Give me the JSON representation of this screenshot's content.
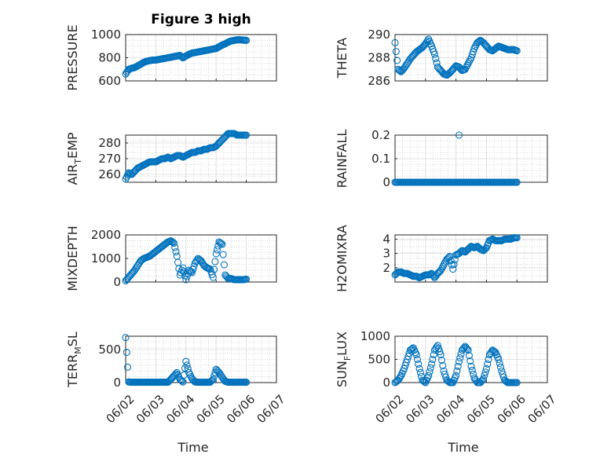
{
  "figure": {
    "title": "Figure 3 high",
    "accent_color": "#0072bd"
  },
  "chart_data": [
    {
      "type": "scatter",
      "ylabel": "PRESSURE",
      "ylim": [
        600,
        1000
      ],
      "yticks": [
        "600",
        "800",
        "1000"
      ],
      "ytick_values": [
        600,
        800,
        1000
      ],
      "xlim": [
        0,
        5
      ],
      "x": [
        0,
        0.1,
        0.2,
        0.3,
        0.4,
        0.5,
        0.6,
        0.7,
        0.8,
        0.9,
        1.0,
        1.1,
        1.2,
        1.3,
        1.4,
        1.5,
        1.6,
        1.7,
        1.8,
        1.9,
        2.0,
        2.1,
        2.2,
        2.3,
        2.4,
        2.5,
        2.6,
        2.7,
        2.8,
        2.9,
        3.0,
        3.1,
        3.2,
        3.3,
        3.4,
        3.5,
        3.6,
        3.7,
        3.8,
        3.9,
        4.0
      ],
      "y": [
        660,
        700,
        710,
        715,
        730,
        745,
        760,
        770,
        775,
        780,
        780,
        785,
        790,
        795,
        800,
        805,
        810,
        815,
        820,
        800,
        815,
        830,
        840,
        845,
        850,
        855,
        860,
        865,
        870,
        875,
        880,
        895,
        910,
        920,
        935,
        945,
        950,
        955,
        955,
        952,
        950
      ]
    },
    {
      "type": "scatter",
      "ylabel": "THETA",
      "ylim": [
        286,
        290
      ],
      "yticks": [
        "286",
        "288",
        "290"
      ],
      "ytick_values": [
        286,
        288,
        290
      ],
      "xlim": [
        0,
        5
      ],
      "x": [
        0,
        0.1,
        0.2,
        0.3,
        0.4,
        0.5,
        0.6,
        0.7,
        0.8,
        0.9,
        1.0,
        1.1,
        1.2,
        1.3,
        1.4,
        1.5,
        1.6,
        1.7,
        1.8,
        1.9,
        2.0,
        2.1,
        2.2,
        2.3,
        2.4,
        2.5,
        2.6,
        2.7,
        2.8,
        2.9,
        3.0,
        3.1,
        3.2,
        3.3,
        3.4,
        3.5,
        3.6,
        3.7,
        3.8,
        3.9,
        4.0
      ],
      "y": [
        289.3,
        287.0,
        286.8,
        287.1,
        287.5,
        287.9,
        288.2,
        288.5,
        288.7,
        288.9,
        289.2,
        289.6,
        289.0,
        288.3,
        287.2,
        286.9,
        286.6,
        286.5,
        286.7,
        287.0,
        287.3,
        287.2,
        286.9,
        287.0,
        287.5,
        288.0,
        288.8,
        289.3,
        289.5,
        289.3,
        289.0,
        288.7,
        288.6,
        288.8,
        289.0,
        288.9,
        288.8,
        288.7,
        288.7,
        288.7,
        288.6
      ]
    },
    {
      "type": "scatter",
      "ylabel": "AIR_TEMP",
      "ylim": [
        255,
        285
      ],
      "yticks": [
        "260",
        "270",
        "280"
      ],
      "ytick_values": [
        260,
        270,
        280
      ],
      "xlim": [
        0,
        5
      ],
      "x": [
        0,
        0.1,
        0.2,
        0.3,
        0.4,
        0.5,
        0.6,
        0.7,
        0.8,
        0.9,
        1.0,
        1.1,
        1.2,
        1.3,
        1.4,
        1.5,
        1.6,
        1.7,
        1.8,
        1.9,
        2.0,
        2.1,
        2.2,
        2.3,
        2.4,
        2.5,
        2.6,
        2.7,
        2.8,
        2.9,
        3.0,
        3.1,
        3.2,
        3.3,
        3.4,
        3.5,
        3.6,
        3.7,
        3.8,
        3.9,
        4.0
      ],
      "y": [
        257,
        261,
        260,
        262,
        264,
        265,
        266,
        267,
        268,
        268,
        268,
        269,
        270,
        270,
        271,
        270,
        271,
        272,
        272,
        271,
        272,
        273,
        274,
        274,
        275,
        275,
        276,
        276,
        277,
        277,
        278,
        280,
        282,
        284,
        286,
        286,
        286,
        285,
        285,
        285,
        285
      ]
    },
    {
      "type": "scatter",
      "ylabel": "RAINFALL",
      "ylim": [
        0,
        0.2
      ],
      "yticks": [
        "0",
        "0.1",
        "0.2"
      ],
      "ytick_values": [
        0,
        0.1,
        0.2
      ],
      "xlim": [
        0,
        5
      ],
      "x": [
        0,
        0.1,
        0.2,
        0.3,
        0.4,
        0.5,
        0.6,
        0.7,
        0.8,
        0.9,
        1.0,
        1.1,
        1.2,
        1.3,
        1.4,
        1.5,
        1.6,
        1.7,
        1.8,
        1.9,
        2.0,
        2.1,
        2.2,
        2.3,
        2.4,
        2.5,
        2.6,
        2.7,
        2.8,
        2.9,
        3.0,
        3.1,
        3.2,
        3.3,
        3.4,
        3.5,
        3.6,
        3.7,
        3.8,
        3.9,
        4.0
      ],
      "y": [
        0,
        0,
        0,
        0,
        0,
        0,
        0,
        0,
        0,
        0,
        0,
        0,
        0,
        0,
        0,
        0,
        0,
        0,
        0,
        0,
        0,
        0,
        0,
        0,
        0,
        0,
        0,
        0,
        0,
        0,
        0,
        0,
        0,
        0,
        0,
        0,
        0,
        0,
        0,
        0,
        0
      ],
      "extra_points": [
        [
          2.1,
          0.2
        ]
      ]
    },
    {
      "type": "scatter",
      "ylabel": "MIXDEPTH",
      "ylim": [
        0,
        2000
      ],
      "yticks": [
        "0",
        "1000",
        "2000"
      ],
      "ytick_values": [
        0,
        1000,
        2000
      ],
      "xlim": [
        0,
        5
      ],
      "x": [
        0,
        0.1,
        0.2,
        0.3,
        0.4,
        0.5,
        0.6,
        0.7,
        0.8,
        0.9,
        1.0,
        1.1,
        1.2,
        1.3,
        1.4,
        1.5,
        1.6,
        1.7,
        1.8,
        1.9,
        2.0,
        2.1,
        2.2,
        2.3,
        2.4,
        2.5,
        2.6,
        2.7,
        2.8,
        2.9,
        3.0,
        3.1,
        3.2,
        3.3,
        3.4,
        3.5,
        3.6,
        3.7,
        3.8,
        3.9,
        4.0
      ],
      "y": [
        50,
        200,
        350,
        500,
        700,
        900,
        1000,
        1050,
        1100,
        1200,
        1300,
        1400,
        1500,
        1600,
        1700,
        1750,
        1650,
        1100,
        300,
        600,
        100,
        500,
        400,
        800,
        1000,
        900,
        700,
        600,
        550,
        200,
        1200,
        1700,
        1600,
        300,
        150,
        150,
        100,
        100,
        100,
        100,
        120
      ]
    },
    {
      "type": "scatter",
      "ylabel": "H2OMIXRA",
      "ylim": [
        1,
        4.3
      ],
      "yticks": [
        "2",
        "3",
        "4"
      ],
      "ytick_values": [
        2,
        3,
        4
      ],
      "xlim": [
        0,
        5
      ],
      "x": [
        0,
        0.1,
        0.2,
        0.3,
        0.4,
        0.5,
        0.6,
        0.7,
        0.8,
        0.9,
        1.0,
        1.1,
        1.2,
        1.3,
        1.4,
        1.5,
        1.6,
        1.7,
        1.8,
        1.9,
        2.0,
        2.1,
        2.2,
        2.3,
        2.4,
        2.5,
        2.6,
        2.7,
        2.8,
        2.9,
        3.0,
        3.1,
        3.2,
        3.3,
        3.4,
        3.5,
        3.6,
        3.7,
        3.8,
        3.9,
        4.0
      ],
      "y": [
        1.5,
        1.7,
        1.7,
        1.6,
        1.6,
        1.5,
        1.4,
        1.4,
        1.3,
        1.4,
        1.5,
        1.5,
        1.6,
        1.3,
        1.6,
        1.8,
        2.2,
        2.6,
        2.8,
        1.9,
        2.9,
        3.0,
        3.2,
        3.1,
        3.3,
        3.5,
        3.4,
        3.5,
        3.3,
        3.2,
        3.4,
        3.9,
        4.0,
        3.9,
        3.9,
        3.9,
        4.0,
        4.0,
        4.0,
        4.1,
        4.1
      ]
    },
    {
      "type": "scatter",
      "ylabel": "TERR_MSL",
      "ylim": [
        0,
        700
      ],
      "yticks": [
        "0",
        "500"
      ],
      "ytick_values": [
        0,
        500
      ],
      "xlim": [
        0,
        5
      ],
      "x": [
        0,
        0.1,
        0.2,
        0.3,
        0.4,
        0.5,
        0.6,
        0.7,
        0.8,
        0.9,
        1.0,
        1.1,
        1.2,
        1.3,
        1.4,
        1.5,
        1.6,
        1.7,
        1.8,
        1.9,
        2.0,
        2.1,
        2.2,
        2.3,
        2.4,
        2.5,
        2.6,
        2.7,
        2.8,
        2.9,
        3.0,
        3.1,
        3.2,
        3.3,
        3.4,
        3.5,
        3.6,
        3.7,
        3.8,
        3.9,
        4.0
      ],
      "y": [
        680,
        10,
        5,
        5,
        5,
        5,
        5,
        5,
        5,
        5,
        5,
        5,
        5,
        5,
        5,
        50,
        100,
        150,
        50,
        10,
        320,
        150,
        60,
        10,
        5,
        5,
        5,
        5,
        5,
        50,
        200,
        150,
        80,
        20,
        5,
        5,
        5,
        5,
        5,
        5,
        5
      ]
    },
    {
      "type": "scatter",
      "ylabel": "SUN_FLUX",
      "ylim": [
        0,
        1000
      ],
      "yticks": [
        "0",
        "500",
        "1000"
      ],
      "ytick_values": [
        0,
        500,
        1000
      ],
      "xlim": [
        0,
        5
      ],
      "x": [
        0,
        0.1,
        0.2,
        0.3,
        0.4,
        0.5,
        0.6,
        0.7,
        0.8,
        0.9,
        1.0,
        1.1,
        1.2,
        1.3,
        1.4,
        1.5,
        1.6,
        1.7,
        1.8,
        1.9,
        2.0,
        2.1,
        2.2,
        2.3,
        2.4,
        2.5,
        2.6,
        2.7,
        2.8,
        2.9,
        3.0,
        3.1,
        3.2,
        3.3,
        3.4,
        3.5,
        3.6,
        3.7,
        3.8,
        3.9,
        4.0
      ],
      "y": [
        0,
        50,
        150,
        300,
        500,
        700,
        750,
        600,
        300,
        50,
        0,
        150,
        400,
        700,
        800,
        600,
        250,
        50,
        0,
        0,
        150,
        450,
        700,
        780,
        700,
        350,
        100,
        0,
        0,
        80,
        300,
        600,
        700,
        650,
        500,
        250,
        50,
        0,
        0,
        0,
        0
      ]
    }
  ],
  "shared_axes": {
    "xticks": [
      "06/02",
      "06/03",
      "06/04",
      "06/05",
      "06/06",
      "06/07"
    ],
    "xlabel_left": "Time",
    "xlabel_right": "Time"
  }
}
